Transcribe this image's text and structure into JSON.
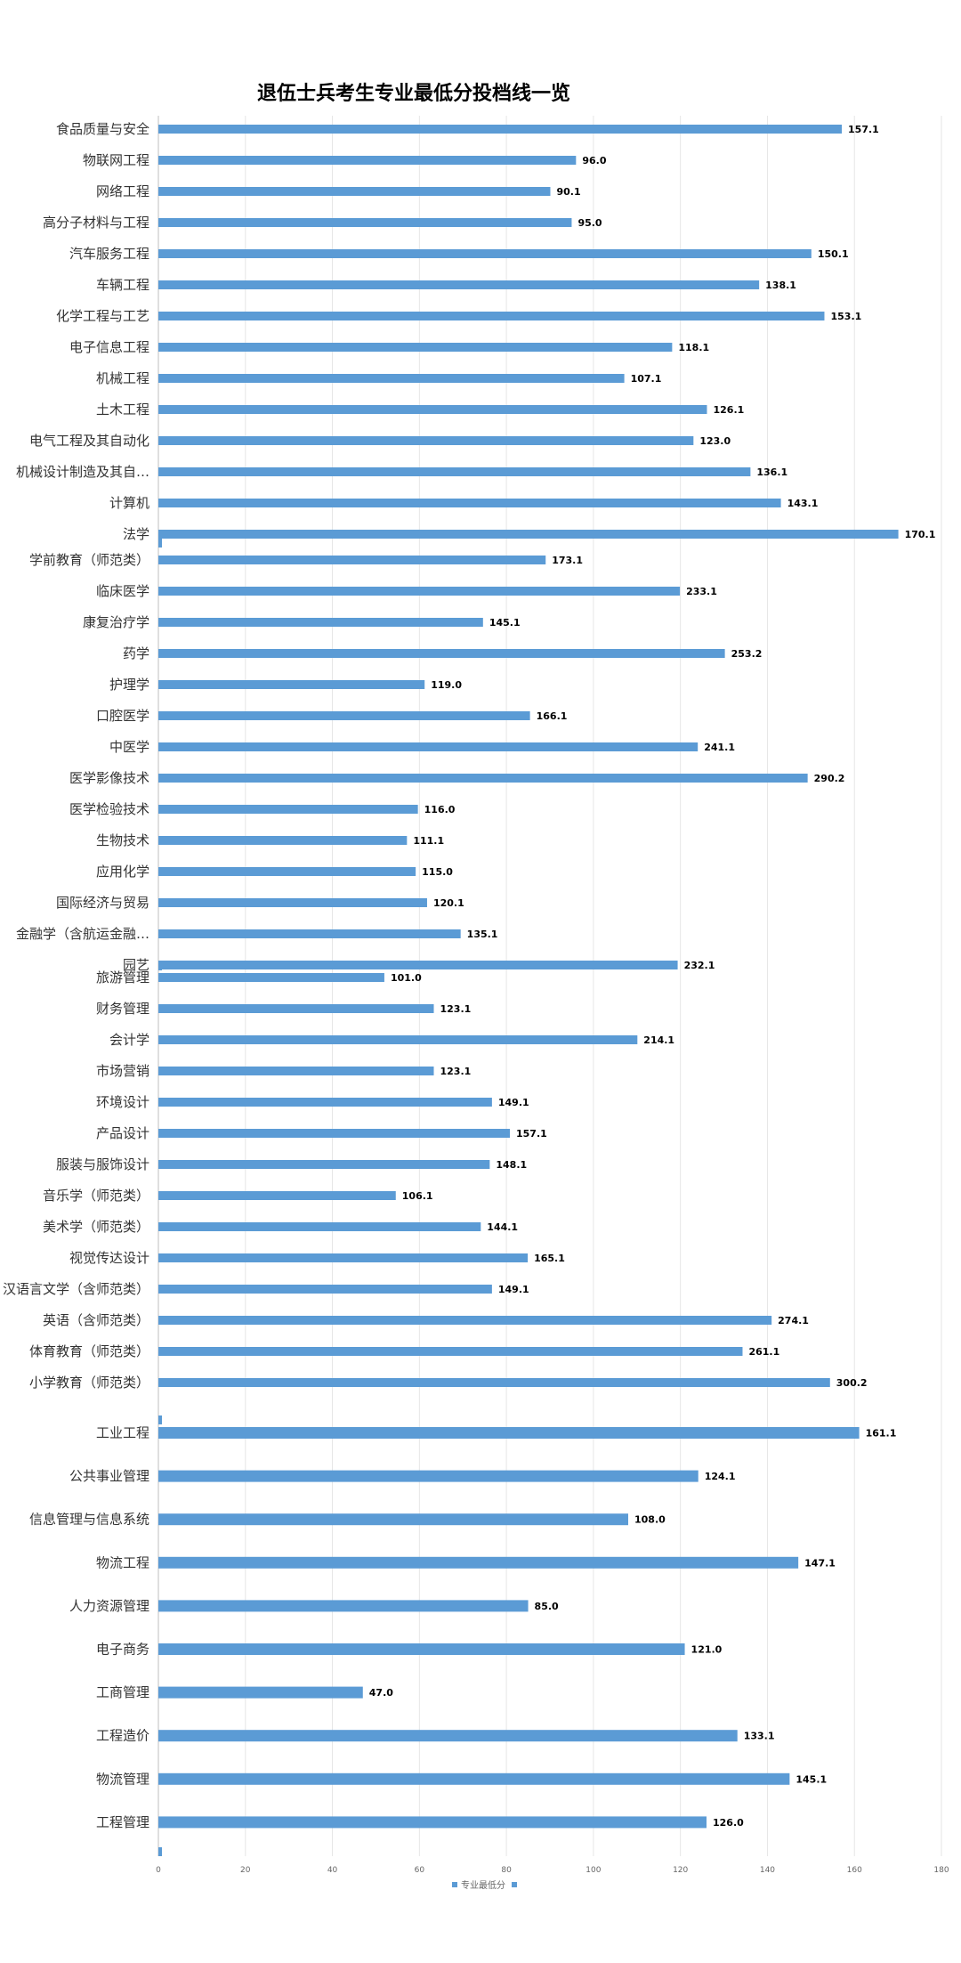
{
  "chart_data": {
    "type": "bar",
    "orientation": "horizontal",
    "title": "退伍士兵考生专业最低分投档线一览",
    "legend": {
      "label": "专业最低分",
      "placement": "bottom"
    },
    "xaxis_ticks": [
      "0",
      "20",
      "40",
      "60",
      "80",
      "100",
      "120",
      "140",
      "160",
      "180"
    ],
    "grid": true,
    "color": "#5b9bd5",
    "panels": [
      {
        "xlim": [
          0,
          180
        ],
        "categories": [
          "食品质量与安全",
          "物联网工程",
          "网络工程",
          "高分子材料与工程",
          "汽车服务工程",
          "车辆工程",
          "化学工程与工艺",
          "电子信息工程",
          "机械工程",
          "土木工程",
          "电气工程及其自动化",
          "机械设计制造及其自…",
          "计算机",
          "法学"
        ],
        "values": [
          157.1,
          96.0,
          90.1,
          95.0,
          150.1,
          138.1,
          153.1,
          118.1,
          107.1,
          126.1,
          123.0,
          136.1,
          143.1,
          170.1
        ],
        "labels": [
          "157.1",
          "96.0",
          "90.1",
          "95.0",
          "150.1",
          "138.1",
          "153.1",
          "118.1",
          "107.1",
          "126.1",
          "123.0",
          "136.1",
          "143.1",
          "170.1"
        ]
      },
      {
        "xlim": [
          0,
          350
        ],
        "categories": [
          "学前教育（师范类）",
          "临床医学",
          "康复治疗学",
          "药学",
          "护理学",
          "口腔医学",
          "中医学",
          "医学影像技术",
          "医学检验技术",
          "生物技术",
          "应用化学",
          "国际经济与贸易",
          "金融学（含航运金融…",
          "园艺"
        ],
        "values": [
          173.1,
          233.1,
          145.1,
          253.2,
          119.0,
          166.1,
          241.1,
          290.2,
          116.0,
          111.1,
          115.0,
          120.1,
          135.1,
          232.1
        ],
        "labels": [
          "173.1",
          "233.1",
          "145.1",
          "253.2",
          "119.0",
          "166.1",
          "241.1",
          "290.2",
          "116.0",
          "111.1",
          "115.0",
          "120.1",
          "135.1",
          "232.1"
        ]
      },
      {
        "xlim": [
          0,
          350
        ],
        "categories": [
          "旅游管理",
          "财务管理",
          "会计学",
          "市场营销",
          "环境设计",
          "产品设计",
          "服装与服饰设计",
          "音乐学（师范类）",
          "美术学（师范类）",
          "视觉传达设计",
          "汉语言文学（含师范类）",
          "英语（含师范类）",
          "体育教育（师范类）",
          "小学教育（师范类）"
        ],
        "values": [
          101.0,
          123.1,
          214.1,
          123.1,
          149.1,
          157.1,
          148.1,
          106.1,
          144.1,
          165.1,
          149.1,
          274.1,
          261.1,
          300.2
        ],
        "labels": [
          "101.0",
          "123.1",
          "214.1",
          "123.1",
          "149.1",
          "157.1",
          "148.1",
          "106.1",
          "144.1",
          "165.1",
          "149.1",
          "274.1",
          "261.1",
          "300.2"
        ]
      },
      {
        "xlim": [
          0,
          180
        ],
        "categories": [
          "工业工程",
          "公共事业管理",
          "信息管理与信息系统",
          "物流工程",
          "人力资源管理",
          "电子商务",
          "工商管理",
          "工程造价",
          "物流管理",
          "工程管理"
        ],
        "values": [
          161.1,
          124.1,
          108.0,
          147.1,
          85.0,
          121.0,
          47.0,
          133.1,
          145.1,
          126.0
        ],
        "labels": [
          "161.1",
          "124.1",
          "108.0",
          "147.1",
          "85.0",
          "121.0",
          "47.0",
          "133.1",
          "145.1",
          "126.0"
        ]
      }
    ]
  }
}
